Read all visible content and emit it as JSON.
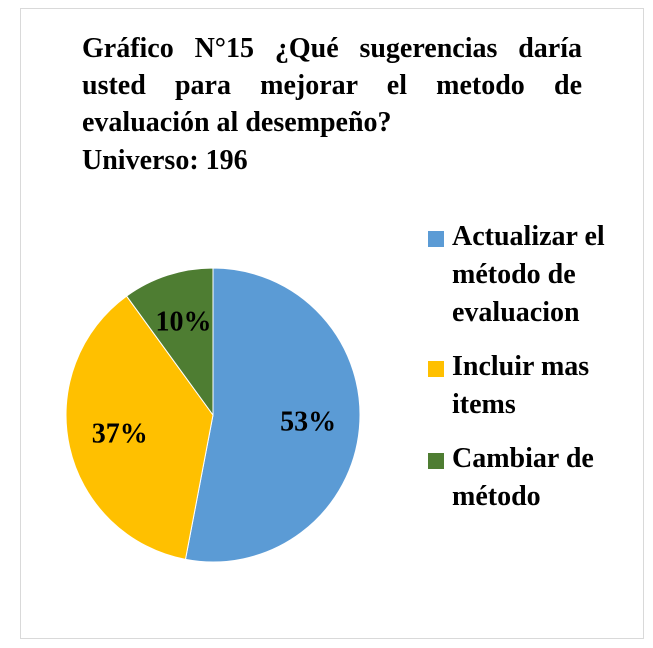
{
  "chart_data": {
    "type": "pie",
    "title": "Gráfico N°15 ¿Qué sugerencias daría usted para mejorar el metodo de evaluación al desempeño?",
    "subtitle": "Universo: 196",
    "categories": [
      "Actualizar el método de evaluacion",
      "Incluir mas items",
      "Cambiar de método"
    ],
    "values": [
      53,
      37,
      10
    ],
    "value_labels": [
      "53%",
      "37%",
      "10%"
    ],
    "colors": [
      "#5b9bd5",
      "#ffc000",
      "#4e7d32"
    ],
    "legend": "right"
  }
}
